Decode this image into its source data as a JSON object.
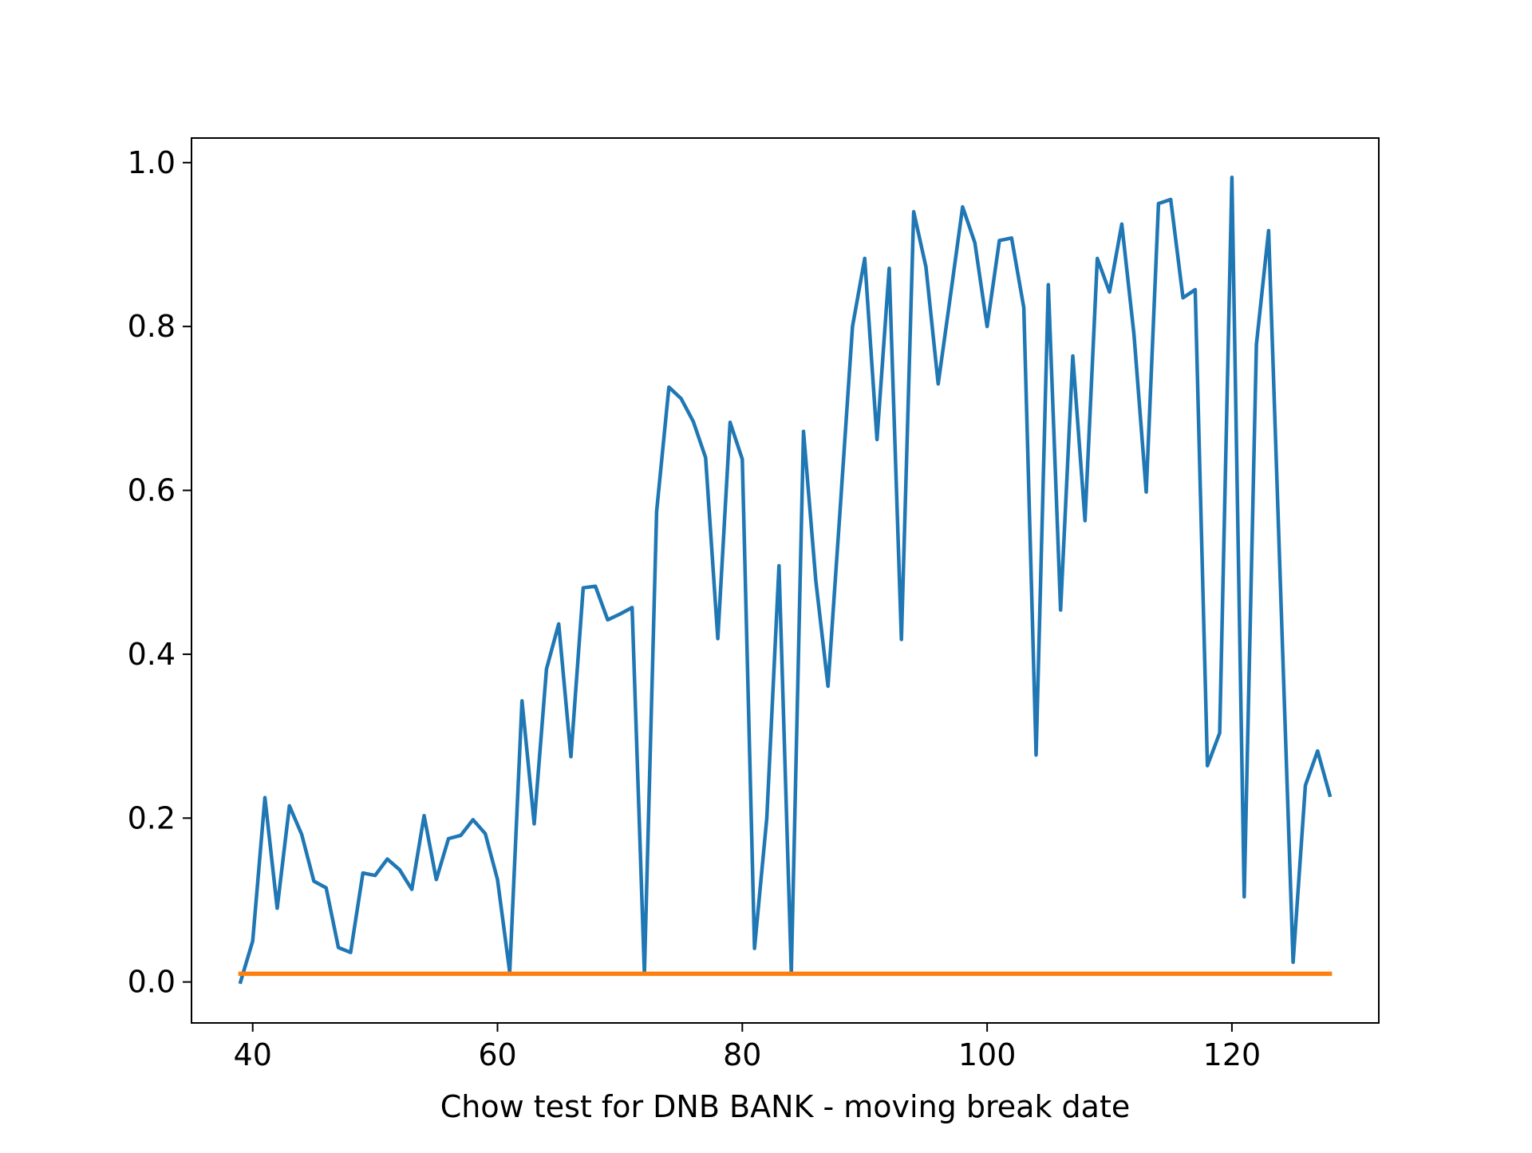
{
  "chart_data": {
    "type": "line",
    "title": "",
    "xlabel": "Chow test for DNB BANK - moving break date",
    "ylabel": "",
    "xlim": [
      35,
      132
    ],
    "ylim": [
      -0.05,
      1.03
    ],
    "x_ticks": [
      40,
      60,
      80,
      100,
      120
    ],
    "x_tick_labels": [
      "40",
      "60",
      "80",
      "100",
      "120"
    ],
    "y_ticks": [
      0.0,
      0.2,
      0.4,
      0.6,
      0.8,
      1.0
    ],
    "y_tick_labels": [
      "0.0",
      "0.2",
      "0.4",
      "0.6",
      "0.8",
      "1.0"
    ],
    "grid": false,
    "legend": "none",
    "series": [
      {
        "color": "#1f77b4",
        "x": [
          39,
          40,
          41,
          42,
          43,
          44,
          45,
          46,
          47,
          48,
          49,
          50,
          51,
          52,
          53,
          54,
          55,
          56,
          57,
          58,
          59,
          60,
          61,
          62,
          63,
          64,
          65,
          66,
          67,
          68,
          69,
          70,
          71,
          72,
          73,
          74,
          75,
          76,
          77,
          78,
          79,
          80,
          81,
          82,
          83,
          84,
          85,
          86,
          87,
          88,
          89,
          90,
          91,
          92,
          93,
          94,
          95,
          96,
          97,
          98,
          99,
          100,
          101,
          102,
          103,
          104,
          105,
          106,
          107,
          108,
          109,
          110,
          111,
          112,
          113,
          114,
          115,
          116,
          117,
          118,
          119,
          120,
          121,
          122,
          123,
          124,
          125,
          126,
          127,
          128
        ],
        "values": [
          0.0,
          0.05,
          0.225,
          0.09,
          0.215,
          0.18,
          0.123,
          0.115,
          0.042,
          0.036,
          0.133,
          0.13,
          0.15,
          0.137,
          0.113,
          0.203,
          0.125,
          0.175,
          0.179,
          0.198,
          0.181,
          0.125,
          0.012,
          0.343,
          0.193,
          0.382,
          0.437,
          0.275,
          0.481,
          0.483,
          0.442,
          0.449,
          0.457,
          0.01,
          0.574,
          0.726,
          0.712,
          0.684,
          0.64,
          0.419,
          0.683,
          0.638,
          0.041,
          0.2,
          0.508,
          0.012,
          0.672,
          0.49,
          0.361,
          0.578,
          0.8,
          0.883,
          0.662,
          0.871,
          0.418,
          0.94,
          0.873,
          0.73,
          0.837,
          0.946,
          0.902,
          0.8,
          0.905,
          0.908,
          0.823,
          0.277,
          0.851,
          0.454,
          0.764,
          0.563,
          0.883,
          0.842,
          0.925,
          0.79,
          0.598,
          0.95,
          0.955,
          0.835,
          0.845,
          0.264,
          0.304,
          0.982,
          0.104,
          0.778,
          0.917,
          0.467,
          0.024,
          0.24,
          0.282,
          0.228
        ]
      },
      {
        "color": "#ff7f0e",
        "x": [
          39,
          128
        ],
        "values": [
          0.01,
          0.01
        ]
      }
    ]
  }
}
